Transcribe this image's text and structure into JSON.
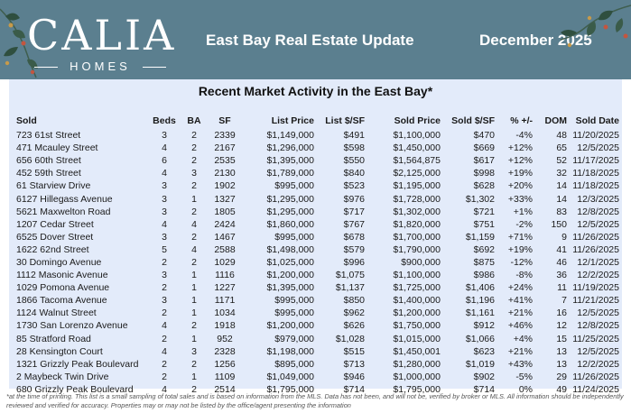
{
  "brand": {
    "name": "CALIA",
    "sub": "HOMES"
  },
  "header": {
    "title": "East Bay Real Estate Update",
    "date": "December 2025"
  },
  "subtitle": "Recent Market Activity in the East Bay*",
  "columns": [
    "Sold",
    "Beds",
    "BA",
    "SF",
    "List Price",
    "List $/SF",
    "Sold Price",
    "Sold $/SF",
    "% +/-",
    "DOM",
    "Sold Date"
  ],
  "rows": [
    [
      "723 61st Street",
      "3",
      "2",
      "2339",
      "$1,149,000",
      "$491",
      "$1,100,000",
      "$470",
      "-4%",
      "48",
      "11/20/2025"
    ],
    [
      "471 Mcauley Street",
      "4",
      "2",
      "2167",
      "$1,296,000",
      "$598",
      "$1,450,000",
      "$669",
      "+12%",
      "65",
      "12/5/2025"
    ],
    [
      "656 60th Street",
      "6",
      "2",
      "2535",
      "$1,395,000",
      "$550",
      "$1,564,875",
      "$617",
      "+12%",
      "52",
      "11/17/2025"
    ],
    [
      "452 59th Street",
      "4",
      "3",
      "2130",
      "$1,789,000",
      "$840",
      "$2,125,000",
      "$998",
      "+19%",
      "32",
      "11/18/2025"
    ],
    [
      "61 Starview Drive",
      "3",
      "2",
      "1902",
      "$995,000",
      "$523",
      "$1,195,000",
      "$628",
      "+20%",
      "14",
      "11/18/2025"
    ],
    [
      "6127 Hillegass Avenue",
      "3",
      "1",
      "1327",
      "$1,295,000",
      "$976",
      "$1,728,000",
      "$1,302",
      "+33%",
      "14",
      "12/3/2025"
    ],
    [
      "5621 Maxwelton Road",
      "3",
      "2",
      "1805",
      "$1,295,000",
      "$717",
      "$1,302,000",
      "$721",
      "+1%",
      "83",
      "12/8/2025"
    ],
    [
      "1207 Cedar Street",
      "4",
      "4",
      "2424",
      "$1,860,000",
      "$767",
      "$1,820,000",
      "$751",
      "-2%",
      "150",
      "12/5/2025"
    ],
    [
      "6525 Dover Street",
      "3",
      "2",
      "1467",
      "$995,000",
      "$678",
      "$1,700,000",
      "$1,159",
      "+71%",
      "9",
      "11/26/2025"
    ],
    [
      "1622 62nd Street",
      "5",
      "4",
      "2588",
      "$1,498,000",
      "$579",
      "$1,790,000",
      "$692",
      "+19%",
      "41",
      "11/26/2025"
    ],
    [
      "30 Domingo Avenue",
      "2",
      "2",
      "1029",
      "$1,025,000",
      "$996",
      "$900,000",
      "$875",
      "-12%",
      "46",
      "12/1/2025"
    ],
    [
      "1112 Masonic Avenue",
      "3",
      "1",
      "1116",
      "$1,200,000",
      "$1,075",
      "$1,100,000",
      "$986",
      "-8%",
      "36",
      "12/2/2025"
    ],
    [
      "1029 Pomona Avenue",
      "2",
      "1",
      "1227",
      "$1,395,000",
      "$1,137",
      "$1,725,000",
      "$1,406",
      "+24%",
      "11",
      "11/19/2025"
    ],
    [
      "1866 Tacoma Avenue",
      "3",
      "1",
      "1171",
      "$995,000",
      "$850",
      "$1,400,000",
      "$1,196",
      "+41%",
      "7",
      "11/21/2025"
    ],
    [
      "1124 Walnut Street",
      "2",
      "1",
      "1034",
      "$995,000",
      "$962",
      "$1,200,000",
      "$1,161",
      "+21%",
      "16",
      "12/5/2025"
    ],
    [
      "1730 San Lorenzo Avenue",
      "4",
      "2",
      "1918",
      "$1,200,000",
      "$626",
      "$1,750,000",
      "$912",
      "+46%",
      "12",
      "12/8/2025"
    ],
    [
      "85 Stratford Road",
      "2",
      "1",
      "952",
      "$979,000",
      "$1,028",
      "$1,015,000",
      "$1,066",
      "+4%",
      "15",
      "11/25/2025"
    ],
    [
      "28 Kensington Court",
      "4",
      "3",
      "2328",
      "$1,198,000",
      "$515",
      "$1,450,001",
      "$623",
      "+21%",
      "13",
      "12/5/2025"
    ],
    [
      "1321 Grizzly Peak Boulevard",
      "2",
      "2",
      "1256",
      "$895,000",
      "$713",
      "$1,280,000",
      "$1,019",
      "+43%",
      "13",
      "12/2/2025"
    ],
    [
      "2 Maybeck Twin Drive",
      "2",
      "1",
      "1109",
      "$1,049,000",
      "$946",
      "$1,000,000",
      "$902",
      "-5%",
      "29",
      "11/26/2025"
    ],
    [
      "680 Grizzly Peak Boulevard",
      "4",
      "2",
      "2514",
      "$1,795,000",
      "$714",
      "$1,795,000",
      "$714",
      "0%",
      "49",
      "11/24/2025"
    ]
  ],
  "disclaimer": "*at the time of printing. This list is a small sampling of total sales and is based on information from the MLS. Data has not been, and will not be, verified by broker or MLS. All information should be independently reviewed and verified for accuracy. Properties may or may not be listed by the office/agent presenting the information",
  "colors": {
    "header_bg": "#5b7f8f",
    "panel_bg": "#e3ebfa",
    "text": "#1a1a1a"
  },
  "decorations": [
    "holly-branch-left",
    "holly-branch-right"
  ]
}
